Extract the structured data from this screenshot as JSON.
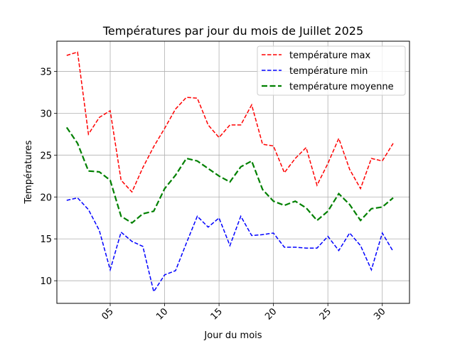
{
  "chart_data": {
    "type": "line",
    "title": "Températures par jour du mois de Juillet 2025",
    "xlabel": "Jour du mois",
    "ylabel": "Températures",
    "x": [
      1,
      2,
      3,
      4,
      5,
      6,
      7,
      8,
      9,
      10,
      11,
      12,
      13,
      14,
      15,
      16,
      17,
      18,
      19,
      20,
      21,
      22,
      23,
      24,
      25,
      26,
      27,
      28,
      29,
      30,
      31
    ],
    "xlim": [
      0.1,
      32.5
    ],
    "ylim": [
      7.3,
      38.6
    ],
    "xticks": [
      5,
      10,
      15,
      20,
      25,
      30
    ],
    "xtick_labels": [
      "05",
      "10",
      "15",
      "20",
      "25",
      "30"
    ],
    "yticks": [
      10,
      15,
      20,
      25,
      30,
      35
    ],
    "ytick_labels": [
      "10",
      "15",
      "20",
      "25",
      "30",
      "35"
    ],
    "grid": true,
    "legend_position": "top-right",
    "series": [
      {
        "name": "température max",
        "color": "#ff0000",
        "style": "dashed",
        "values": [
          36.9,
          37.3,
          27.5,
          29.5,
          30.3,
          22.0,
          20.6,
          23.5,
          26.0,
          28.2,
          30.5,
          31.9,
          31.8,
          28.6,
          27.1,
          28.6,
          28.6,
          31.0,
          26.3,
          26.1,
          22.9,
          24.6,
          25.9,
          21.4,
          24.0,
          27.0,
          23.3,
          21.0,
          24.6,
          24.3,
          26.4
        ]
      },
      {
        "name": "température min",
        "color": "#0000ff",
        "style": "dashed",
        "values": [
          19.6,
          19.9,
          18.5,
          16.0,
          11.3,
          15.8,
          14.7,
          14.1,
          8.7,
          10.7,
          11.2,
          14.5,
          17.7,
          16.4,
          17.5,
          14.2,
          17.7,
          15.4,
          15.5,
          15.7,
          14.0,
          14.0,
          13.9,
          13.9,
          15.3,
          13.6,
          15.7,
          14.2,
          11.3,
          15.7,
          13.5
        ]
      },
      {
        "name": "température moyenne",
        "color": "#008000",
        "style": "dashed",
        "values": [
          28.3,
          26.4,
          23.1,
          23.0,
          22.0,
          17.7,
          16.9,
          18.0,
          18.3,
          21.0,
          22.6,
          24.6,
          24.3,
          23.4,
          22.5,
          21.8,
          23.6,
          24.3,
          20.9,
          19.5,
          19.0,
          19.5,
          18.7,
          17.2,
          18.3,
          20.4,
          19.1,
          17.2,
          18.6,
          18.8,
          19.9
        ]
      }
    ]
  }
}
